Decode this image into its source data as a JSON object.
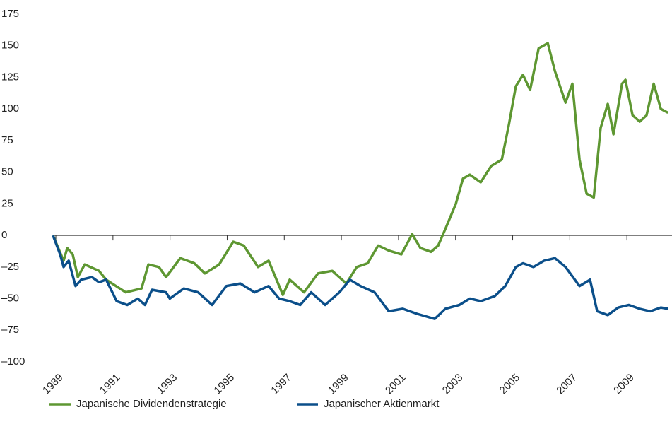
{
  "chart_data": {
    "type": "line",
    "xlim": [
      1988.9,
      2010.58
    ],
    "xticks": [
      1989,
      1991,
      1993,
      1995,
      1997,
      1999,
      2001,
      2003,
      2005,
      2007,
      2009
    ],
    "ylim": [
      -100,
      175
    ],
    "yticks": [
      {
        "value": -100,
        "label": "–100"
      },
      {
        "value": -75,
        "label": "–75"
      },
      {
        "value": -50,
        "label": "–50"
      },
      {
        "value": -25,
        "label": "–25"
      },
      0,
      25,
      50,
      75,
      100,
      125,
      150,
      175
    ],
    "series": [
      {
        "name": "Japanische Dividendenstrategie",
        "color": "#5e9732",
        "x": [
          1988.9,
          1989.27,
          1989.4,
          1989.59,
          1989.77,
          1990.01,
          1990.51,
          1990.76,
          1991.45,
          1992.0,
          1992.24,
          1992.61,
          1992.86,
          1993.36,
          1993.85,
          1994.22,
          1994.72,
          1995.21,
          1995.58,
          1996.08,
          1996.45,
          1996.95,
          1997.19,
          1997.69,
          1998.18,
          1998.68,
          1999.17,
          1999.54,
          1999.92,
          2000.29,
          2000.66,
          2001.1,
          2001.48,
          2001.77,
          2002.14,
          2002.39,
          2002.64,
          2003.01,
          2003.26,
          2003.5,
          2003.88,
          2004.25,
          2004.62,
          2004.87,
          2005.11,
          2005.36,
          2005.61,
          2005.91,
          2006.23,
          2006.48,
          2006.85,
          2007.09,
          2007.34,
          2007.59,
          2007.84,
          2008.08,
          2008.33,
          2008.53,
          2008.83,
          2008.95,
          2009.2,
          2009.45,
          2009.69,
          2009.94,
          2010.19,
          2010.44
        ],
        "values": [
          0,
          -20,
          -10,
          -15,
          -33,
          -23,
          -28,
          -35,
          -45,
          -42,
          -23,
          -25,
          -33,
          -18,
          -22,
          -30,
          -23,
          -5,
          -8,
          -25,
          -20,
          -47,
          -35,
          -45,
          -30,
          -28,
          -38,
          -25,
          -22,
          -8,
          -12,
          -15,
          1,
          -10,
          -13,
          -8,
          5,
          25,
          45,
          48,
          42,
          55,
          60,
          88,
          118,
          127,
          115,
          148,
          152,
          130,
          105,
          120,
          60,
          33,
          30,
          85,
          104,
          80,
          120,
          123,
          95,
          90,
          95,
          120,
          100,
          97
        ]
      },
      {
        "name": "Japanischer Aktienmarkt",
        "color": "#0b4f8a",
        "x": [
          1988.9,
          1989.15,
          1989.27,
          1989.45,
          1989.69,
          1989.89,
          1990.26,
          1990.51,
          1990.76,
          1991.13,
          1991.5,
          1991.87,
          1992.12,
          1992.37,
          1992.86,
          1992.99,
          1993.48,
          1993.98,
          1994.47,
          1994.97,
          1995.46,
          1995.96,
          1996.45,
          1996.82,
          1997.19,
          1997.56,
          1997.94,
          1998.43,
          1998.93,
          1999.3,
          1999.67,
          2000.16,
          2000.66,
          2001.15,
          2001.65,
          2002.27,
          2002.64,
          2003.13,
          2003.5,
          2003.88,
          2004.37,
          2004.74,
          2005.11,
          2005.36,
          2005.73,
          2006.1,
          2006.48,
          2006.85,
          2007.34,
          2007.71,
          2007.96,
          2008.33,
          2008.7,
          2009.07,
          2009.45,
          2009.82,
          2010.19,
          2010.44
        ],
        "values": [
          0,
          -15,
          -25,
          -20,
          -40,
          -35,
          -33,
          -37,
          -35,
          -52,
          -55,
          -50,
          -55,
          -43,
          -45,
          -50,
          -42,
          -45,
          -55,
          -40,
          -38,
          -45,
          -40,
          -50,
          -52,
          -55,
          -45,
          -55,
          -45,
          -35,
          -40,
          -45,
          -60,
          -58,
          -62,
          -66,
          -58,
          -55,
          -50,
          -52,
          -48,
          -40,
          -25,
          -22,
          -25,
          -20,
          -18,
          -25,
          -40,
          -35,
          -60,
          -63,
          -57,
          -55,
          -58,
          -60,
          -57,
          -58
        ]
      }
    ]
  }
}
